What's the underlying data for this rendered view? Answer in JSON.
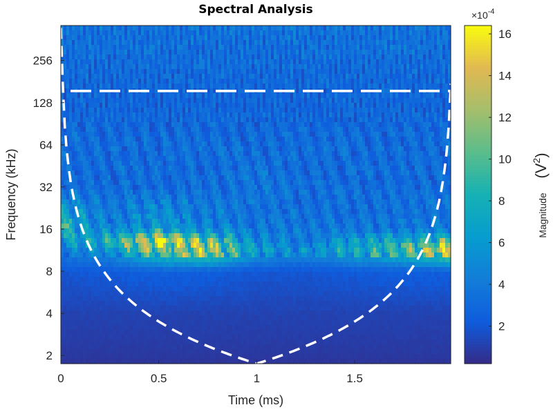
{
  "chart_data": {
    "type": "heatmap",
    "title": "Spectral Analysis",
    "xlabel": "Time (ms)",
    "ylabel": "Frequency (kHz)",
    "xlim": [
      0,
      1.99
    ],
    "ylim": [
      1.75,
      455
    ],
    "yscale": "log2",
    "x_ticks": [
      0,
      0.5,
      1,
      1.5
    ],
    "x_tick_labels": [
      "0",
      "0.5",
      "1",
      "1.5"
    ],
    "y_ticks": [
      2,
      4,
      8,
      16,
      32,
      64,
      128,
      256
    ],
    "y_tick_labels": [
      "2",
      "4",
      "8",
      "16",
      "32",
      "64",
      "128",
      "256"
    ],
    "colorbar": {
      "label": "Magnitude",
      "unit_label": "(V",
      "unit_exp": "2",
      "unit_close": ")",
      "multiplier": "×10",
      "multiplier_exp": "-4",
      "range": [
        0.2,
        16.4
      ],
      "ticks": [
        2,
        4,
        6,
        8,
        10,
        12,
        14,
        16
      ],
      "tick_labels": [
        "2",
        "4",
        "6",
        "8",
        "10",
        "12",
        "14",
        "16"
      ],
      "colormap": "parula"
    },
    "grid_time": [
      0,
      0.25,
      0.5,
      0.75,
      1,
      1.25,
      1.5,
      1.75,
      2
    ],
    "grid_freq": [
      1.75,
      2,
      4,
      8,
      11,
      13,
      16,
      32,
      64,
      128,
      256,
      455
    ],
    "magnitude": [
      [
        0.6,
        0.6,
        0.6,
        0.6,
        0.6,
        0.6,
        0.6,
        0.6,
        0.6
      ],
      [
        0.8,
        0.8,
        0.8,
        0.8,
        0.8,
        0.8,
        0.8,
        0.8,
        0.8
      ],
      [
        1.2,
        1.2,
        1.2,
        1.2,
        1.2,
        1.2,
        1.2,
        1.2,
        1.2
      ],
      [
        2.0,
        2.2,
        2.5,
        2.4,
        2.0,
        2.0,
        2.2,
        2.4,
        2.4
      ],
      [
        4,
        5,
        10,
        12,
        6,
        5,
        7,
        9,
        13
      ],
      [
        5,
        8,
        15,
        10,
        5,
        4,
        6,
        7,
        10
      ],
      [
        8,
        4,
        6,
        4.5,
        3.5,
        3.5,
        3.5,
        3.5,
        4
      ],
      [
        3,
        3,
        3,
        3,
        3.5,
        3,
        3,
        3,
        3
      ],
      [
        3,
        3,
        3,
        3,
        3,
        3,
        3,
        3,
        3
      ],
      [
        2.6,
        2.6,
        2.6,
        2.6,
        2.6,
        2.6,
        2.6,
        2.6,
        2.6
      ],
      [
        3,
        3,
        3,
        3,
        3,
        3,
        3,
        3,
        3
      ],
      [
        3.4,
        3.4,
        3.4,
        3.4,
        3.4,
        3.4,
        3.4,
        3.4,
        3.4
      ]
    ],
    "cone_of_influence": {
      "style": "white dashed",
      "max_freq_line_kHz": 155
    },
    "colors": {
      "line": "#ffffff",
      "axis": "#262626"
    }
  }
}
